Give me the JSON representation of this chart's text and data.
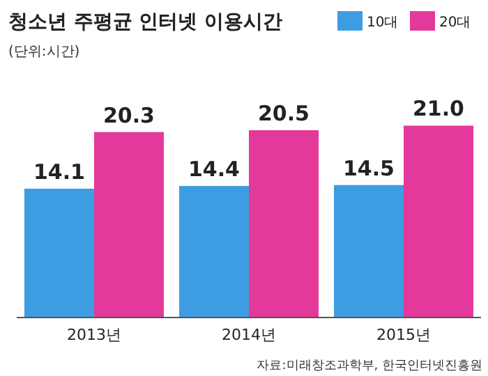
{
  "chart_data": {
    "type": "bar",
    "title": "청소년 주평균 인터넷 이용시간",
    "subtitle": "(단위:시간)",
    "categories": [
      "2013년",
      "2014년",
      "2015년"
    ],
    "series": [
      {
        "name": "10대",
        "color": "#3d9de3",
        "values": [
          14.1,
          14.4,
          14.5
        ],
        "value_labels": [
          "14.1",
          "14.4",
          "14.5"
        ]
      },
      {
        "name": "20대",
        "color": "#e2399a",
        "values": [
          20.3,
          20.5,
          21.0
        ],
        "value_labels": [
          "20.3",
          "20.5",
          "21.0"
        ]
      }
    ],
    "legend": "top right",
    "grid": false,
    "annotations": [
      "자료:미래창조과학부, 한국인터넷진흥원"
    ]
  }
}
